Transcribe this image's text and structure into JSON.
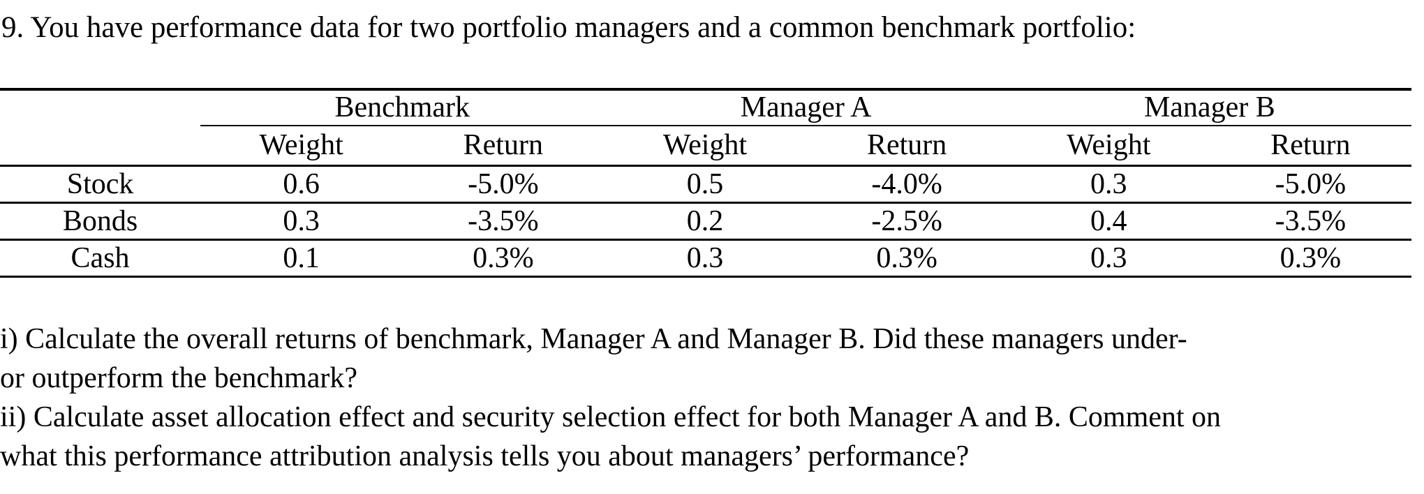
{
  "problem": {
    "statement": "9. You have performance data for two portfolio managers and a common benchmark portfolio:"
  },
  "table": {
    "group_headers": [
      "Benchmark",
      "Manager A",
      "Manager B"
    ],
    "sub_headers": [
      "Weight",
      "Return",
      "Weight",
      "Return",
      "Weight",
      "Return"
    ],
    "rows": [
      {
        "label": "Stock",
        "values": [
          "0.6",
          "-5.0%",
          "0.5",
          "-4.0%",
          "0.3",
          "-5.0%"
        ]
      },
      {
        "label": "Bonds",
        "values": [
          "0.3",
          "-3.5%",
          "0.2",
          "-2.5%",
          "0.4",
          "-3.5%"
        ]
      },
      {
        "label": "Cash",
        "values": [
          "0.1",
          "0.3%",
          "0.3",
          "0.3%",
          "0.3",
          "0.3%"
        ]
      }
    ]
  },
  "questions": {
    "i": {
      "lines": [
        "i) Calculate the overall returns of benchmark, Manager A and Manager B. Did these managers under-",
        "or outperform the benchmark?"
      ]
    },
    "ii": {
      "lines": [
        "ii) Calculate asset allocation effect and security selection effect for both Manager A and B. Comment on",
        "what this performance attribution analysis tells you about managers’ performance?"
      ]
    }
  },
  "colors": {
    "text": "#000000",
    "background": "#ffffff",
    "rule": "#000000"
  }
}
